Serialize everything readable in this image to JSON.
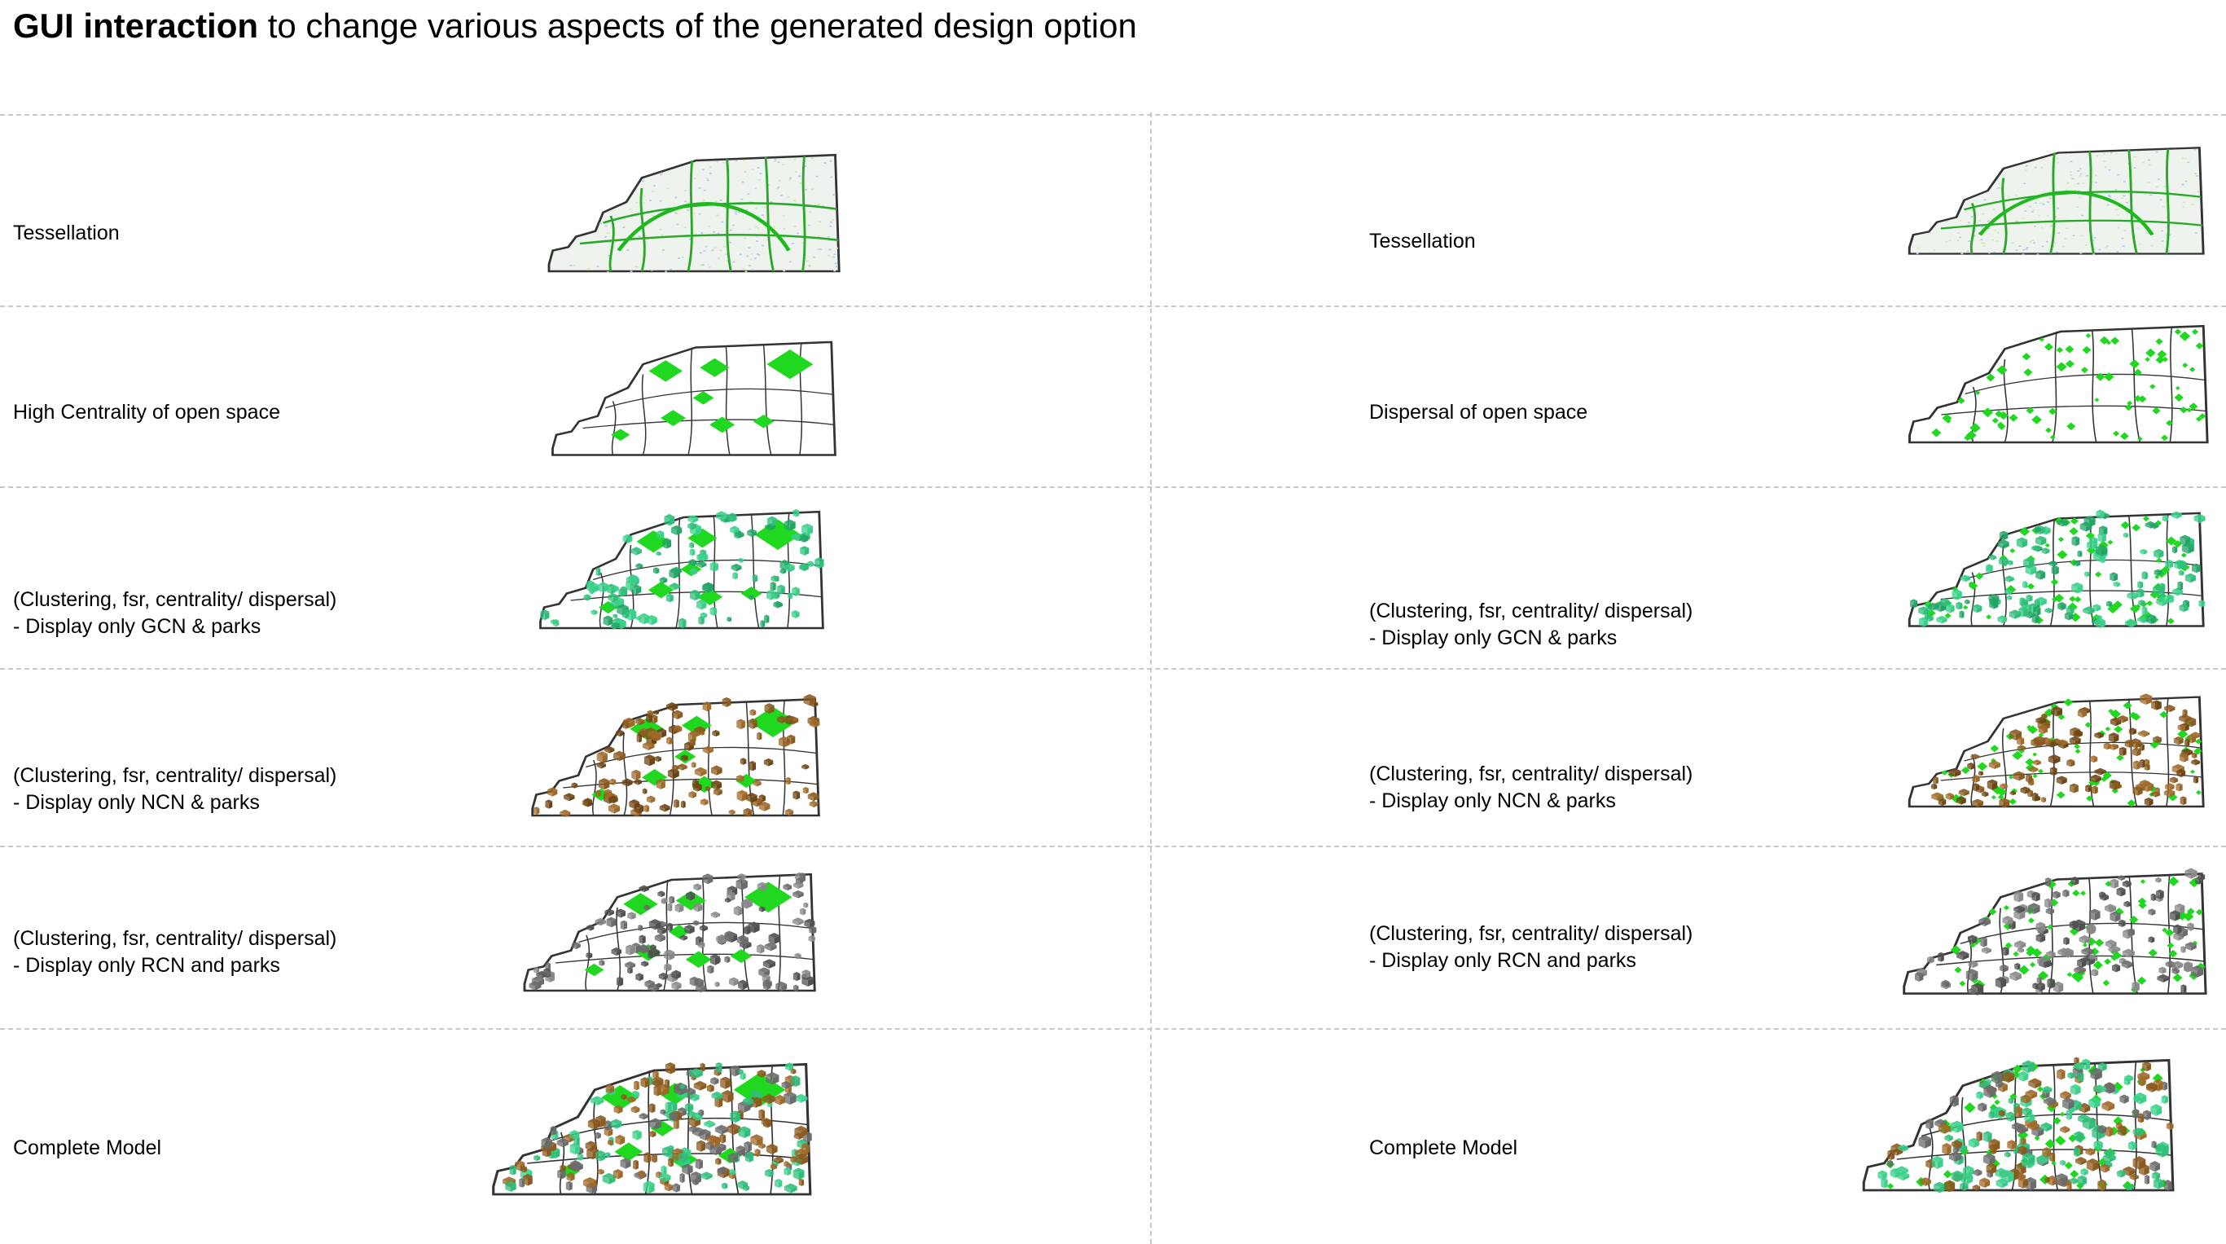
{
  "title": {
    "bold": "GUI interaction",
    "rest": " to change various aspects of the generated design option"
  },
  "colors": {
    "park": "#1fd81f",
    "gcn": "#2fbf7a",
    "ncn": "#8a5a1e",
    "rcn": "#6b6b6b",
    "line": "#333333",
    "tess": "#b8c8e8"
  },
  "left_column": [
    {
      "line1": "Tessellation",
      "line2": "",
      "layer": "tessellation",
      "pattern": "centrality"
    },
    {
      "line1": "High Centrality of open space",
      "line2": "",
      "layer": "open-space",
      "pattern": "centrality"
    },
    {
      "line1": "(Clustering, fsr, centrality/ dispersal)",
      "line2": "- Display only GCN & parks",
      "layer": "gcn",
      "pattern": "centrality"
    },
    {
      "line1": "(Clustering, fsr, centrality/ dispersal)",
      "line2": "- Display only NCN & parks",
      "layer": "ncn",
      "pattern": "centrality"
    },
    {
      "line1": "(Clustering, fsr, centrality/ dispersal)",
      "line2": "- Display only RCN and parks",
      "layer": "rcn",
      "pattern": "centrality"
    },
    {
      "line1": "Complete Model",
      "line2": "",
      "layer": "complete",
      "pattern": "centrality"
    }
  ],
  "right_column": [
    {
      "line1": "Tessellation",
      "line2": "",
      "layer": "tessellation",
      "pattern": "dispersal"
    },
    {
      "line1": "Dispersal of open space",
      "line2": "",
      "layer": "open-space",
      "pattern": "dispersal"
    },
    {
      "line1": "(Clustering, fsr, centrality/ dispersal)",
      "line2": "- Display only GCN & parks",
      "layer": "gcn",
      "pattern": "dispersal"
    },
    {
      "line1": "(Clustering, fsr, centrality/ dispersal)",
      "line2": "- Display only NCN & parks",
      "layer": "ncn",
      "pattern": "dispersal"
    },
    {
      "line1": "(Clustering, fsr, centrality/ dispersal)",
      "line2": "- Display only RCN and parks",
      "layer": "rcn",
      "pattern": "dispersal"
    },
    {
      "line1": "Complete Model",
      "line2": "",
      "layer": "complete",
      "pattern": "dispersal"
    }
  ]
}
